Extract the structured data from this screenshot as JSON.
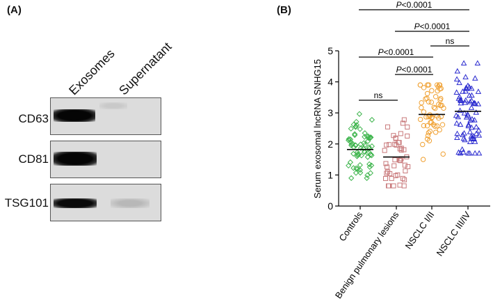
{
  "panel_a": {
    "label": "(A)",
    "lanes": [
      "Exosomes",
      "Supernatant"
    ],
    "blots": [
      {
        "name": "CD63"
      },
      {
        "name": "CD81"
      },
      {
        "name": "TSG101"
      }
    ]
  },
  "colors": {
    "controls": "#3cb44b",
    "benign": "#c8787a",
    "nsclc12": "#f0a030",
    "nsclc34": "#2a2acf"
  },
  "chart_data": {
    "panel_label": "(B)",
    "type": "scatter",
    "ylabel": "Serum exosomal lncRNA SNHG15",
    "ylim": [
      0,
      5
    ],
    "yticks": [
      0,
      1,
      2,
      3,
      4,
      5
    ],
    "categories": [
      "Controls",
      "Benign pulmonary lesions",
      "NSCLC I/II",
      "NSCLC III/IV"
    ],
    "series": [
      {
        "name": "Controls",
        "marker": "diamond",
        "mean": 1.82,
        "n": 70,
        "min": 0.9,
        "max": 3.0
      },
      {
        "name": "Benign pulmonary lesions",
        "marker": "square",
        "mean": 1.58,
        "n": 45,
        "min": 0.65,
        "max": 2.85
      },
      {
        "name": "NSCLC I/II",
        "marker": "circle",
        "mean": 2.95,
        "n": 60,
        "min": 1.5,
        "max": 3.9
      },
      {
        "name": "NSCLC III/IV",
        "marker": "triangle",
        "mean": 3.05,
        "n": 75,
        "min": 1.7,
        "max": 4.6
      }
    ],
    "comparisons": [
      {
        "from": 0,
        "to": 1,
        "label": "ns",
        "italicP": false
      },
      {
        "from": 1,
        "to": 2,
        "label": "P<0.0001",
        "italicP": true
      },
      {
        "from": 0,
        "to": 2,
        "label": "P<0.0001",
        "italicP": true
      },
      {
        "from": 2,
        "to": 3,
        "label": "ns",
        "italicP": false
      },
      {
        "from": 1,
        "to": 3,
        "label": "P<0.0001",
        "italicP": true
      },
      {
        "from": 0,
        "to": 3,
        "label": "P<0.0001",
        "italicP": true
      }
    ]
  }
}
